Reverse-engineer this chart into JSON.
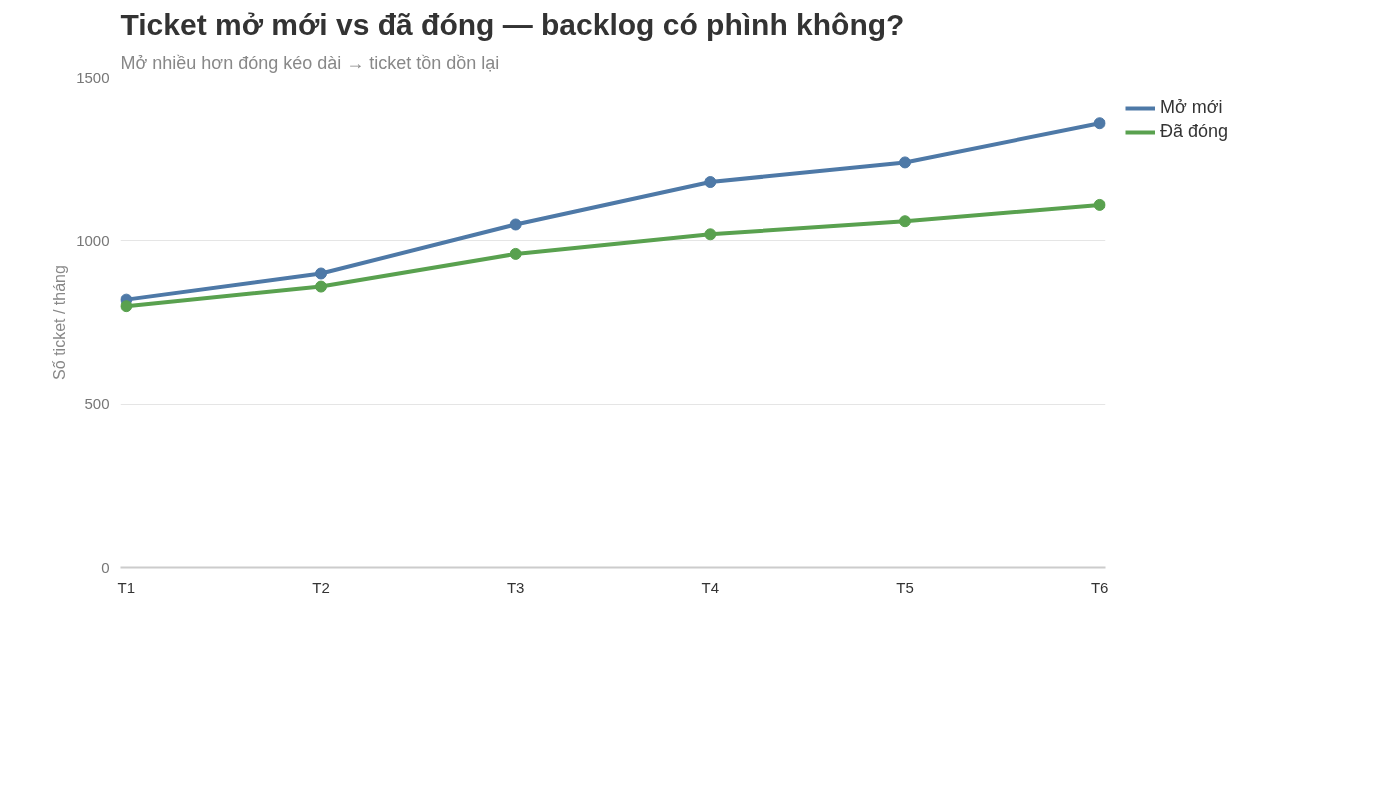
{
  "chart_data": {
    "type": "line",
    "title": "Ticket mở mới vs đã đóng — backlog có phình không?",
    "subtitle": "Mở nhiều hơn đóng kéo dài → ticket tồn dồn lại",
    "ylabel": "Số ticket / tháng",
    "categories": [
      "T1",
      "T2",
      "T3",
      "T4",
      "T5",
      "T6"
    ],
    "series": [
      {
        "name": "Mở mới",
        "color": "#4e79a7",
        "values": [
          820,
          900,
          1050,
          1180,
          1240,
          1360
        ]
      },
      {
        "name": "Đã đóng",
        "color": "#59a14f",
        "values": [
          800,
          860,
          960,
          1020,
          1060,
          1110
        ]
      }
    ],
    "ylim": [
      0,
      1500
    ],
    "yticks": [
      0,
      500,
      1000,
      1500
    ],
    "grid": "y",
    "legend": "top right",
    "marker": "circle",
    "line_style": "solid"
  }
}
